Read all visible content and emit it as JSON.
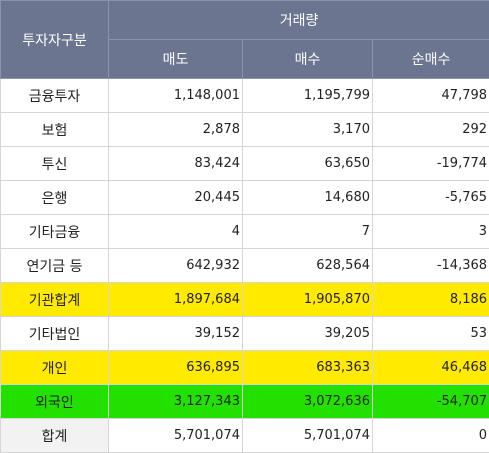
{
  "header": {
    "category": "투자자구분",
    "group": "거래량",
    "columns": [
      "매도",
      "매수",
      "순매수"
    ]
  },
  "rows": [
    {
      "name": "금융투자",
      "sell": "1,148,001",
      "buy": "1,195,799",
      "net": "47,798"
    },
    {
      "name": "보험",
      "sell": "2,878",
      "buy": "3,170",
      "net": "292"
    },
    {
      "name": "투신",
      "sell": "83,424",
      "buy": "63,650",
      "net": "-19,774"
    },
    {
      "name": "은행",
      "sell": "20,445",
      "buy": "14,680",
      "net": "-5,765"
    },
    {
      "name": "기타금융",
      "sell": "4",
      "buy": "7",
      "net": "3"
    },
    {
      "name": "연기금 등",
      "sell": "642,932",
      "buy": "628,564",
      "net": "-14,368"
    },
    {
      "name": "기관합계",
      "sell": "1,897,684",
      "buy": "1,905,870",
      "net": "8,186"
    },
    {
      "name": "기타법인",
      "sell": "39,152",
      "buy": "39,205",
      "net": "53"
    },
    {
      "name": "개인",
      "sell": "636,895",
      "buy": "683,363",
      "net": "46,468"
    },
    {
      "name": "외국인",
      "sell": "3,127,343",
      "buy": "3,072,636",
      "net": "-54,707"
    },
    {
      "name": "합계",
      "sell": "5,701,074",
      "buy": "5,701,074",
      "net": "0"
    }
  ],
  "highlight_colors": {
    "yellow": "#ffea00",
    "green": "#22e000"
  }
}
